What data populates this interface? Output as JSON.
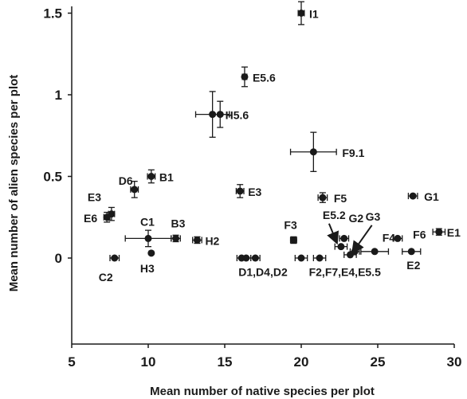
{
  "chart_data": {
    "type": "scatter",
    "title": "",
    "xlabel": "Mean number of native species per plot",
    "ylabel": "Mean number of alien species per plot",
    "xlim": [
      5,
      30
    ],
    "ylim": [
      -0.55,
      1.6
    ],
    "xticks": [
      5,
      10,
      15,
      20,
      25,
      30
    ],
    "yticks": [
      0,
      0.5,
      1,
      1.5
    ],
    "ytick_labels": [
      "0",
      "0.5",
      "1",
      "1.5"
    ],
    "grid": false,
    "points": [
      {
        "label": "I1",
        "x": 20.0,
        "y": 1.5,
        "xerr": 0.2,
        "yerr": 0.07
      },
      {
        "label": "E5.6",
        "x": 16.3,
        "y": 1.11,
        "xerr": 0.15,
        "yerr": 0.06
      },
      {
        "label": "H5.6",
        "x": 14.2,
        "y": 0.88,
        "xerr": 1.1,
        "yerr": 0.14
      },
      {
        "label": "",
        "x": 14.7,
        "y": 0.88,
        "xerr": 0.6,
        "yerr": 0.08
      },
      {
        "label": "F9.1",
        "x": 20.8,
        "y": 0.65,
        "xerr": 1.5,
        "yerr": 0.12
      },
      {
        "label": "D6",
        "x": 9.1,
        "y": 0.42,
        "xerr": 0.25,
        "yerr": 0.05
      },
      {
        "label": "B1",
        "x": 10.2,
        "y": 0.5,
        "xerr": 0.25,
        "yerr": 0.04
      },
      {
        "label": "E3",
        "x": 16.0,
        "y": 0.41,
        "xerr": 0.25,
        "yerr": 0.04
      },
      {
        "label": "F5",
        "x": 21.4,
        "y": 0.37,
        "xerr": 0.3,
        "yerr": 0.03
      },
      {
        "label": "G1",
        "x": 27.3,
        "y": 0.38,
        "xerr": 0.3,
        "yerr": 0.0
      },
      {
        "label": "E3",
        "x": 7.6,
        "y": 0.27,
        "xerr": 0.2,
        "yerr": 0.04
      },
      {
        "label": "E6",
        "x": 7.3,
        "y": 0.25,
        "xerr": 0.2,
        "yerr": 0.03
      },
      {
        "label": "C1",
        "x": 10.0,
        "y": 0.12,
        "xerr": 1.5,
        "yerr": 0.05
      },
      {
        "label": "B3",
        "x": 11.8,
        "y": 0.12,
        "xerr": 0.3,
        "yerr": 0.02
      },
      {
        "label": "H2",
        "x": 13.2,
        "y": 0.11,
        "xerr": 0.3,
        "yerr": 0.02
      },
      {
        "label": "F3",
        "x": 19.5,
        "y": 0.11,
        "xerr": 0.2,
        "yerr": 0.02
      },
      {
        "label": "",
        "x": 22.6,
        "y": 0.07,
        "xerr": 0.4,
        "yerr": 0.0
      },
      {
        "label": "",
        "x": 22.8,
        "y": 0.12,
        "xerr": 0.3,
        "yerr": 0.0
      },
      {
        "label": "E1",
        "x": 29.0,
        "y": 0.16,
        "xerr": 0.4,
        "yerr": 0.02
      },
      {
        "label": "",
        "x": 26.3,
        "y": 0.12,
        "xerr": 0.3,
        "yerr": 0.0
      },
      {
        "label": "",
        "x": 24.8,
        "y": 0.04,
        "xerr": 0.9,
        "yerr": 0.0
      },
      {
        "label": "E2",
        "x": 27.2,
        "y": 0.04,
        "xerr": 0.6,
        "yerr": 0.0
      },
      {
        "label": "",
        "x": 23.2,
        "y": 0.02,
        "xerr": 0.4,
        "yerr": 0.0
      },
      {
        "label": "C2",
        "x": 7.8,
        "y": 0.0,
        "xerr": 0.3,
        "yerr": 0.0
      },
      {
        "label": "H3",
        "x": 10.2,
        "y": 0.03,
        "xerr": 0.0,
        "yerr": 0.0
      },
      {
        "label": "",
        "x": 16.1,
        "y": 0.0,
        "xerr": 0.3,
        "yerr": 0.0
      },
      {
        "label": "",
        "x": 16.4,
        "y": 0.0,
        "xerr": 0.3,
        "yerr": 0.0
      },
      {
        "label": "",
        "x": 17.0,
        "y": 0.0,
        "xerr": 0.3,
        "yerr": 0.0
      },
      {
        "label": "",
        "x": 20.0,
        "y": 0.0,
        "xerr": 0.4,
        "yerr": 0.0
      },
      {
        "label": "",
        "x": 21.2,
        "y": 0.0,
        "xerr": 0.4,
        "yerr": 0.0
      },
      {
        "label": "",
        "x": 23.5,
        "y": 0.04,
        "xerr": 0.3,
        "yerr": 0.0
      }
    ],
    "annotations": [
      {
        "text": "D1,D4,D2",
        "x": 15.9,
        "y": -0.11
      },
      {
        "text": "F2,F7,E4,E5.5",
        "x": 20.5,
        "y": -0.11
      },
      {
        "text": "E5.2",
        "x": 21.4,
        "y": 0.24,
        "arrow_to": [
          22.3,
          0.1
        ]
      },
      {
        "text": "G2",
        "x": 23.1,
        "y": 0.22
      },
      {
        "text": "G3",
        "x": 24.2,
        "y": 0.23,
        "arrow_to": [
          23.4,
          0.04
        ]
      },
      {
        "text": "F4",
        "x": 25.3,
        "y": 0.1
      },
      {
        "text": "F6",
        "x": 27.3,
        "y": 0.12
      }
    ]
  }
}
